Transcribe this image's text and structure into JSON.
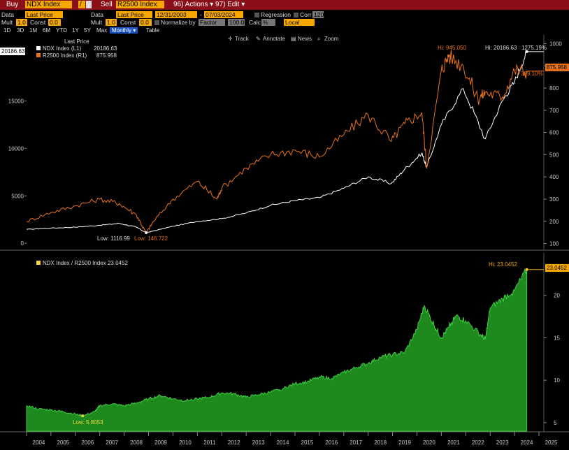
{
  "toolbar": {
    "buy_label": "Buy",
    "buy_ticker": "NDX Index",
    "divider": "/",
    "sell_label": "Sell",
    "sell_ticker": "R2500 Index",
    "actions_label": "96) Actions ▾",
    "edit_label": "97) Edit ▾"
  },
  "settings": {
    "data_label": "Data",
    "data_value": "Last Price",
    "data2_label": "Data",
    "data2_value": "Last Price",
    "start_date": "12/31/2003",
    "date_sep": "-",
    "end_date": "07/03/2024",
    "regression_label": "Regression",
    "corr_label": "Corr",
    "corr_value": "120",
    "mult_label": "Mult",
    "mult_value": "1.0",
    "const_label": "Const",
    "const_value": "0.0",
    "mult2_label": "Mult",
    "mult2_value": "1.0",
    "const2_label": "Const",
    "const2_value": "0.0",
    "normalize_label": "Normalize by",
    "normalize_value": "Factor",
    "normalize_num": "100.0",
    "calc_label": "Calc",
    "calc_value": "%",
    "local_value": "Local"
  },
  "ranges": [
    "1D",
    "3D",
    "1M",
    "6M",
    "YTD",
    "1Y",
    "5Y",
    "Max",
    "Monthly ▾",
    "Table"
  ],
  "chart_tools": [
    "Track",
    "Annotate",
    "News",
    "Zoom"
  ],
  "legend": {
    "title": "Last Price",
    "row1_name": "NDX Index  (L1)",
    "row1_value": "20186.63",
    "row2_name": "R2500 Index  (R1)",
    "row2_value": "875.958",
    "lower_name": "NDX Index / R2500 Index 23.0452"
  },
  "annotations": {
    "left_tag": "20186.63",
    "right_tag": "875.958",
    "ndx_low": "Low: 1116.99",
    "r2500_low": "Low: 146.722",
    "r2500_hi": "Hi: 945.050",
    "ndx_hi": "Hi: 20186.63",
    "ndx_chg": "1275.19%",
    "r2500_chg": "329.10%",
    "ratio_hi": "Hi: 23.0452",
    "ratio_low": "Low: 5.8053",
    "ratio_tag": "23.0452"
  },
  "colors": {
    "ndx": "#ffffff",
    "r2500": "#e8721c",
    "ratio_fill": "#1e8a1e",
    "ratio_line": "#3fce3f",
    "accent": "#f6a800",
    "toolbar": "#8b0f18"
  },
  "chart_data": [
    {
      "type": "line",
      "title": "",
      "x_ticks": [
        "2004",
        "2005",
        "2006",
        "2007",
        "2008",
        "2009",
        "2010",
        "2011",
        "2012",
        "2013",
        "2014",
        "2015",
        "2016",
        "2017",
        "2018",
        "2019",
        "2020",
        "2021",
        "2022",
        "2023",
        "2024",
        "2025"
      ],
      "y_left_ticks": [
        0,
        5000,
        10000,
        15000
      ],
      "y_right_ticks": [
        100,
        200,
        300,
        400,
        500,
        600,
        700,
        800,
        900,
        1000
      ],
      "y_left_range": [
        -500,
        21500
      ],
      "y_right_range": [
        80,
        1020
      ],
      "series": [
        {
          "name": "NDX Index  (L1)",
          "axis": "left",
          "x": [
            2004,
            2005,
            2006,
            2007,
            2007.8,
            2008.5,
            2008.9,
            2009.2,
            2010,
            2011,
            2012,
            2013,
            2014,
            2015,
            2016,
            2017,
            2018,
            2018.95,
            2019.5,
            2020.2,
            2020.4,
            2021,
            2021.9,
            2022.8,
            2023.5,
            2024,
            2024.5
          ],
          "y": [
            1468,
            1600,
            1700,
            1900,
            2100,
            1700,
            1117,
            1300,
            1800,
            2300,
            2600,
            3200,
            4000,
            4500,
            4800,
            5800,
            7000,
            6300,
            7800,
            9500,
            8000,
            12500,
            16300,
            11000,
            15000,
            17000,
            20186
          ]
        },
        {
          "name": "R2500 Index  (R1)",
          "axis": "right",
          "x": [
            2004,
            2005,
            2006,
            2007,
            2007.8,
            2008.5,
            2008.9,
            2009.2,
            2010,
            2011,
            2011.8,
            2012,
            2013,
            2014,
            2015,
            2016,
            2017,
            2018,
            2018.95,
            2019.5,
            2020.2,
            2020.4,
            2021,
            2021.3,
            2021.9,
            2022.5,
            2022.8,
            2023.5,
            2024,
            2024.5
          ],
          "y": [
            200,
            240,
            270,
            300,
            280,
            230,
            147,
            200,
            300,
            380,
            300,
            350,
            440,
            500,
            520,
            490,
            590,
            680,
            560,
            640,
            690,
            440,
            880,
            945,
            900,
            750,
            780,
            760,
            880,
            876
          ]
        }
      ]
    },
    {
      "type": "area",
      "title": "",
      "series_name": "NDX Index / R2500 Index",
      "x_ticks": [
        "2004",
        "2005",
        "2006",
        "2007",
        "2008",
        "2009",
        "2010",
        "2011",
        "2012",
        "2013",
        "2014",
        "2015",
        "2016",
        "2017",
        "2018",
        "2019",
        "2020",
        "2021",
        "2022",
        "2023",
        "2024",
        "2025"
      ],
      "y_ticks": [
        5,
        10,
        15,
        20
      ],
      "y_range": [
        4,
        25
      ],
      "x": [
        2004,
        2004.5,
        2005,
        2005.5,
        2006,
        2006.3,
        2006.8,
        2007,
        2007.5,
        2008,
        2008.5,
        2009,
        2009.5,
        2010,
        2010.5,
        2011,
        2011.5,
        2012,
        2012.5,
        2013,
        2013.5,
        2014,
        2014.5,
        2015,
        2015.5,
        2016,
        2016.5,
        2017,
        2017.5,
        2018,
        2018.5,
        2019,
        2019.5,
        2020,
        2020.3,
        2020.7,
        2021,
        2021.3,
        2021.6,
        2022,
        2022.6,
        2022.8,
        2023,
        2023.5,
        2024,
        2024.5
      ],
      "y": [
        7.0,
        6.6,
        6.5,
        6.3,
        6.0,
        5.8,
        6.3,
        7.0,
        7.2,
        7.0,
        7.3,
        7.8,
        8.2,
        7.8,
        7.6,
        7.8,
        8.0,
        8.5,
        8.4,
        8.0,
        8.3,
        8.6,
        9.0,
        9.6,
        9.8,
        10.4,
        10.2,
        10.9,
        11.5,
        12.0,
        12.7,
        13.0,
        13.3,
        16.0,
        18.8,
        16.5,
        15.0,
        16.2,
        17.6,
        17.0,
        15.4,
        14.8,
        18.5,
        19.6,
        20.6,
        23.0452
      ]
    }
  ]
}
